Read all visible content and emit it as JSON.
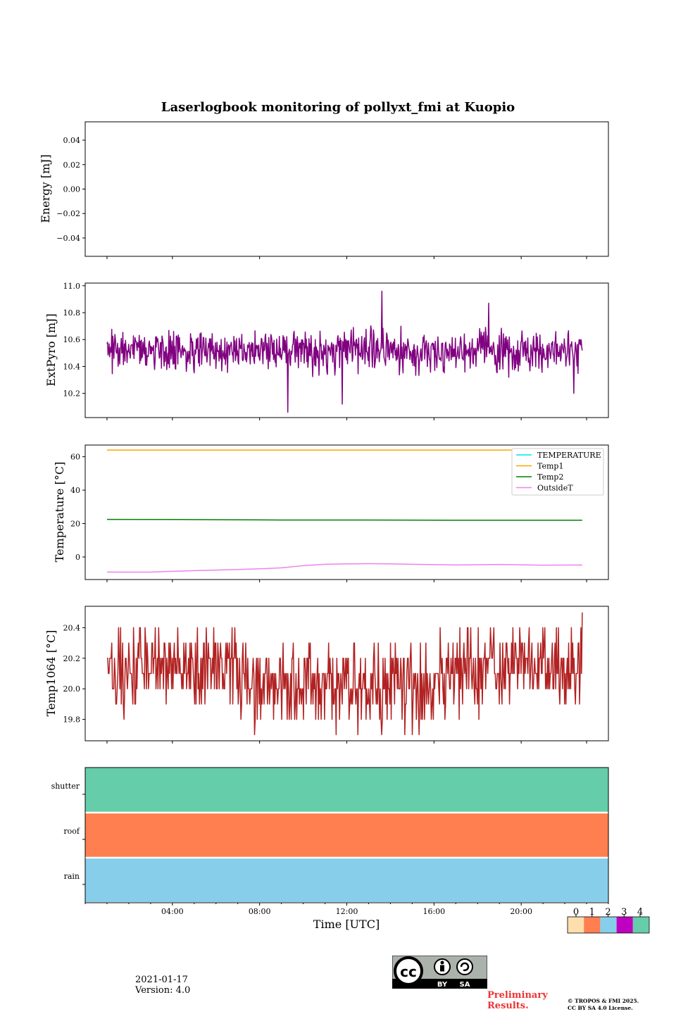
{
  "chart_data": {
    "title": "Laserlogbook monitoring of pollyxt_fmi at Kuopio",
    "xlabel": "Time [UTC]",
    "xlim_hours": [
      -1.0,
      23.0
    ],
    "x_ticks": [
      {
        "label": "04:00",
        "hour": 3.0
      },
      {
        "label": "08:00",
        "hour": 7.0
      },
      {
        "label": "12:00",
        "hour": 11.0
      },
      {
        "label": "16:00",
        "hour": 15.0
      },
      {
        "label": "20:00",
        "hour": 19.0
      }
    ],
    "panels": [
      {
        "id": "energy",
        "type": "line",
        "ylabel": "Energy [mJ]",
        "ylim": [
          -0.055,
          0.055
        ],
        "yticks": [
          0.04,
          0.02,
          0.0,
          -0.02,
          -0.04
        ],
        "ytick_labels": [
          "0.04",
          "0.02",
          "0.00",
          "−0.02",
          "−0.04"
        ],
        "series": []
      },
      {
        "id": "extpyro",
        "type": "line",
        "ylabel": "ExtPyro [mJ]",
        "ylim": [
          10.02,
          11.02
        ],
        "yticks": [
          11.0,
          10.8,
          10.6,
          10.4,
          10.2
        ],
        "ytick_labels": [
          "11.0",
          "10.8",
          "10.6",
          "10.4",
          "10.2"
        ],
        "series": [
          {
            "name": "ExtPyro",
            "color": "#800080",
            "summary": {
              "mean": 10.52,
              "min": 10.06,
              "max": 10.96,
              "n_points": 900,
              "t_start": 0.0,
              "t_end": 21.8
            },
            "peaks": [
              [
                12.6,
                10.96
              ],
              [
                8.3,
                10.06
              ],
              [
                10.8,
                10.12
              ],
              [
                21.4,
                10.2
              ],
              [
                17.5,
                10.87
              ]
            ]
          }
        ]
      },
      {
        "id": "temperature",
        "type": "line",
        "ylabel": "Temperature [°C]",
        "ylim": [
          -13.5,
          67.0
        ],
        "yticks": [
          60,
          40,
          20,
          0
        ],
        "ytick_labels": [
          "60",
          "40",
          "20",
          "0"
        ],
        "legend": {
          "location": "upper right"
        },
        "series": [
          {
            "name": "TEMPERATURE",
            "color": "#00e5ee",
            "x": [],
            "y": []
          },
          {
            "name": "Temp1",
            "color": "#ffa500",
            "x": [
              0,
              21.8
            ],
            "y": [
              64,
              64
            ]
          },
          {
            "name": "Temp2",
            "color": "#008000",
            "x": [
              0,
              4,
              8,
              12,
              16,
              21.8
            ],
            "y": [
              22.5,
              22.4,
              22.1,
              22.1,
              22.0,
              22.0
            ]
          },
          {
            "name": "OutsideT",
            "color": "#ee82ee",
            "x": [
              0,
              1,
              2,
              4,
              6,
              7,
              8,
              9,
              10,
              11,
              12,
              13,
              14,
              16,
              18,
              20,
              21.8
            ],
            "y": [
              -9,
              -9.1,
              -9,
              -8.2,
              -7.5,
              -7.1,
              -6.5,
              -5.2,
              -4.4,
              -4.1,
              -4.0,
              -4.1,
              -4.4,
              -4.8,
              -4.5,
              -4.9,
              -4.8
            ]
          }
        ]
      },
      {
        "id": "temp1064",
        "type": "line",
        "ylabel": "Temp1064 [°C]",
        "ylim": [
          19.66,
          20.54
        ],
        "yticks": [
          20.4,
          20.2,
          20.0,
          19.8
        ],
        "ytick_labels": [
          "20.4",
          "20.2",
          "20.0",
          "19.8"
        ],
        "series": [
          {
            "name": "Temp1064",
            "color": "#b22222",
            "summary": {
              "min": 19.7,
              "max": 20.5,
              "resolution": 0.1,
              "n_points": 700,
              "t_start": 0.0,
              "t_end": 21.8,
              "last_value": 20.5
            }
          }
        ]
      },
      {
        "id": "status",
        "type": "heatmap",
        "rows": [
          "shutter",
          "roof",
          "rain"
        ],
        "row_values": [
          4,
          1,
          2
        ],
        "colorbar": {
          "labels": [
            "0",
            "1",
            "2",
            "3",
            "4"
          ],
          "colors": [
            "#ffdead",
            "#ff7f50",
            "#87ceeb",
            "#c000c0",
            "#66cdaa"
          ]
        }
      }
    ]
  },
  "footer": {
    "date": "2021-01-17",
    "version": "Version: 4.0",
    "cc_main": "cc",
    "cc_by": "BY",
    "cc_sa": "SA",
    "preliminary": "Preliminary Results.",
    "copyright_1": "© TROPOS & FMI 2025.",
    "copyright_2": "CC BY SA 4.0 License."
  }
}
